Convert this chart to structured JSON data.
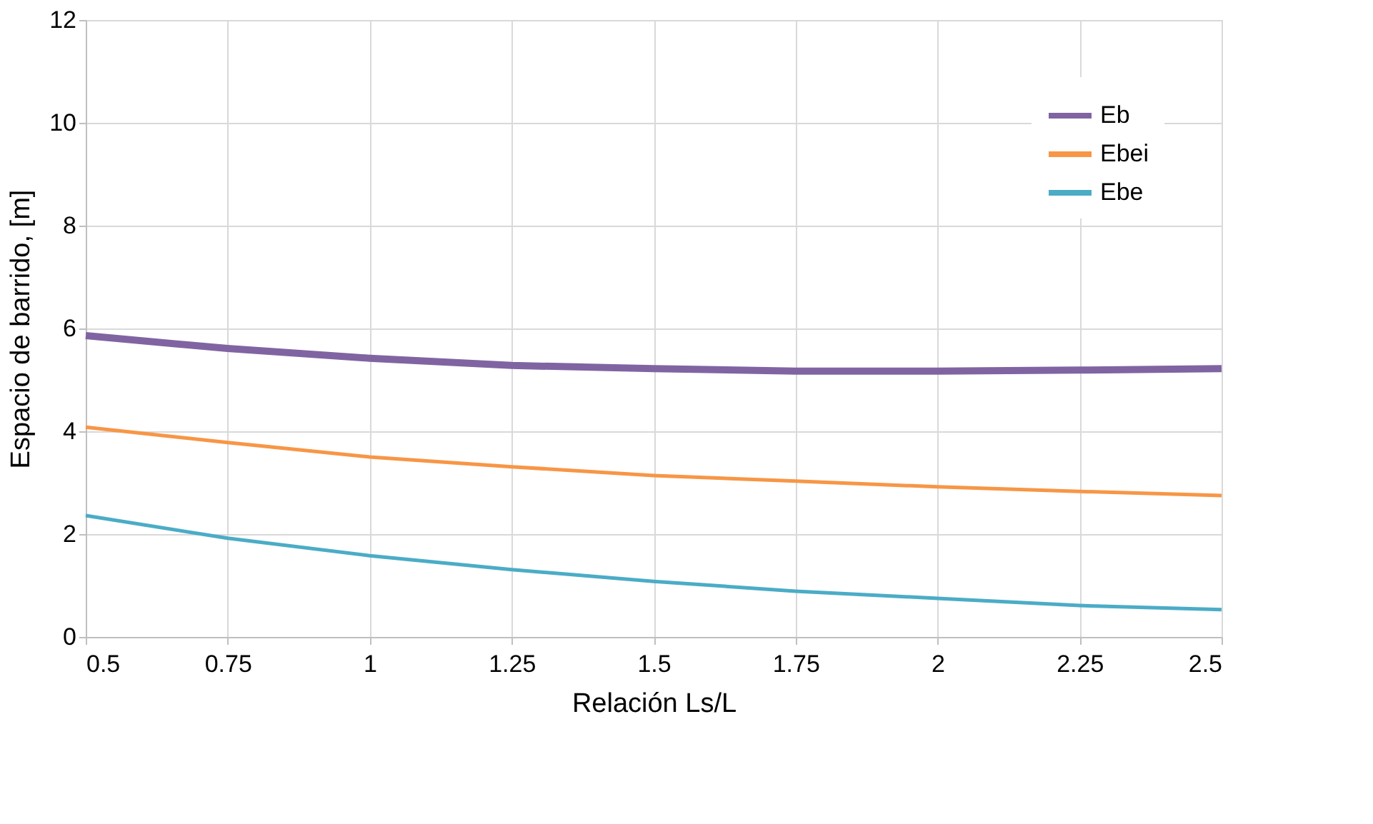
{
  "chart_data": {
    "type": "line",
    "xlabel": "Relación Ls/L",
    "ylabel": "Espacio de barrido, [m]",
    "x": [
      0.5,
      0.75,
      1,
      1.25,
      1.5,
      1.75,
      2,
      2.25,
      2.5
    ],
    "series": [
      {
        "name": "Eb",
        "color": "#8064a2",
        "values": [
          5.86,
          5.61,
          5.42,
          5.28,
          5.22,
          5.17,
          5.17,
          5.19,
          5.22
        ]
      },
      {
        "name": "Ebei",
        "color": "#f79646",
        "values": [
          4.08,
          3.78,
          3.5,
          3.31,
          3.14,
          3.03,
          2.92,
          2.83,
          2.75
        ]
      },
      {
        "name": "Ebe",
        "color": "#4bacc6",
        "values": [
          2.36,
          1.92,
          1.58,
          1.31,
          1.08,
          0.89,
          0.75,
          0.61,
          0.53
        ]
      }
    ],
    "xlim": [
      0.5,
      2.5
    ],
    "xticks": [
      0.5,
      0.75,
      1,
      1.25,
      1.5,
      1.75,
      2,
      2.25,
      2.5
    ],
    "ylim": [
      0,
      12
    ],
    "yticks": [
      0,
      2,
      4,
      6,
      8,
      10,
      12
    ],
    "grid": true,
    "legend": "top right",
    "marker": "none",
    "line_style": "solid"
  }
}
